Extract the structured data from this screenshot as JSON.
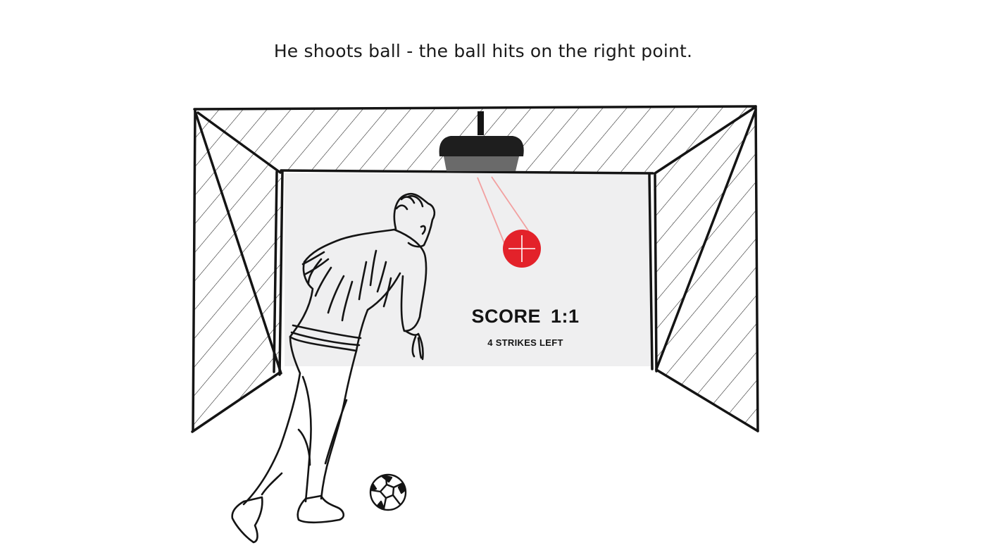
{
  "caption": "He shoots ball - the ball hits on the right point.",
  "screen": {
    "score_text": "SCORE  1:1",
    "strikes_text": "4 STRIKES LEFT"
  },
  "colors": {
    "target": "#e3222a",
    "laser": "#f2a0a0",
    "projector_top": "#1e1e1e",
    "projector_lens": "#6a6a6a",
    "screen": "#efeff0",
    "line": "#141414"
  },
  "icons": [
    "projector-icon",
    "target-crosshair-icon",
    "soccer-ball-icon",
    "player-figure"
  ]
}
